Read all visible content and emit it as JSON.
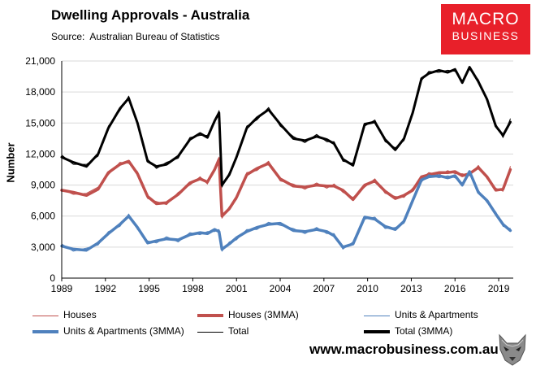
{
  "header": {
    "title": "Dwelling Approvals - Australia",
    "source": "Source:  Australian Bureau of Statistics"
  },
  "logo": {
    "line1": "MACRO",
    "line2": "BUSINESS",
    "bg_color": "#e8202a"
  },
  "footer": {
    "url": "www.macrobusiness.com.au",
    "wolf_icon": "wolf-icon"
  },
  "chart_data": {
    "type": "line",
    "title": "Dwelling Approvals - Australia",
    "ylabel": "Number",
    "xlabel": "",
    "xlim": [
      1989,
      2020
    ],
    "ylim": [
      0,
      21000
    ],
    "x_ticks": [
      "1989",
      "1992",
      "1995",
      "1998",
      "2001",
      "2004",
      "2007",
      "2010",
      "2013",
      "2016",
      "2019"
    ],
    "y_ticks": [
      "0",
      "3,000",
      "6,000",
      "9,000",
      "12,000",
      "15,000",
      "18,000",
      "21,000"
    ],
    "grid": true,
    "legend_position": "bottom",
    "series_anchor_x": [
      1989.0,
      1989.8,
      1990.7,
      1991.5,
      1992.2,
      1993.0,
      1993.6,
      1994.2,
      1994.9,
      1995.5,
      1996.2,
      1997.0,
      1997.8,
      1998.5,
      1999.0,
      1999.5,
      1999.8,
      2000.0,
      2000.5,
      2001.0,
      2001.7,
      2002.4,
      2003.2,
      2004.0,
      2004.9,
      2005.7,
      2006.5,
      2007.2,
      2007.7,
      2008.3,
      2009.0,
      2009.8,
      2010.5,
      2011.2,
      2011.9,
      2012.5,
      2013.1,
      2013.7,
      2014.2,
      2014.9,
      2015.5,
      2016.0,
      2016.5,
      2017.0,
      2017.6,
      2018.2,
      2018.8,
      2019.3,
      2019.8
    ],
    "series": [
      {
        "name": "Houses (3MMA)",
        "color": "#c0504d",
        "width": 3.5,
        "values": [
          8500,
          8300,
          8000,
          8600,
          10200,
          11000,
          11300,
          10100,
          7900,
          7200,
          7300,
          8100,
          9200,
          9600,
          9300,
          10500,
          11500,
          6000,
          6700,
          7800,
          10000,
          10600,
          11100,
          9600,
          8900,
          8800,
          9000,
          8900,
          8900,
          8500,
          7600,
          9000,
          9400,
          8400,
          7700,
          8000,
          8500,
          9800,
          10000,
          10200,
          10200,
          10300,
          9900,
          10100,
          10700,
          9800,
          8500,
          8600,
          10500
        ]
      },
      {
        "name": "Houses",
        "color": "#c0504d",
        "width": 1,
        "values": [
          8600,
          8100,
          8200,
          8800,
          10000,
          11200,
          11100,
          10300,
          7700,
          7400,
          7100,
          8300,
          9000,
          9800,
          9100,
          10700,
          11700,
          5800,
          6900,
          7600,
          10200,
          10400,
          11300,
          9400,
          9100,
          8600,
          9200,
          8700,
          9100,
          8300,
          7800,
          8800,
          9600,
          8200,
          7900,
          7800,
          8700,
          9600,
          10200,
          10000,
          10400,
          10100,
          10100,
          9900,
          10900,
          9600,
          8700,
          8400,
          10800
        ]
      },
      {
        "name": "Units & Apartments (3MMA)",
        "color": "#4f81bd",
        "width": 3.5,
        "values": [
          3100,
          2800,
          2700,
          3400,
          4300,
          5200,
          6000,
          4900,
          3400,
          3600,
          3800,
          3700,
          4200,
          4400,
          4300,
          4700,
          4500,
          2800,
          3300,
          3900,
          4500,
          4900,
          5200,
          5300,
          4600,
          4500,
          4700,
          4500,
          4100,
          3000,
          3300,
          5900,
          5700,
          5000,
          4700,
          5500,
          7500,
          9500,
          9800,
          9900,
          9700,
          9900,
          9000,
          10300,
          8300,
          7500,
          6200,
          5200,
          4600
        ]
      },
      {
        "name": "Units & Apartments",
        "color": "#4f81bd",
        "width": 1,
        "values": [
          3300,
          2600,
          2900,
          3200,
          4500,
          5000,
          6200,
          4700,
          3600,
          3400,
          4000,
          3500,
          4400,
          4200,
          4500,
          4500,
          4700,
          2600,
          3500,
          3700,
          4700,
          4700,
          5400,
          5100,
          4800,
          4300,
          4900,
          4300,
          4300,
          2800,
          3500,
          5700,
          5900,
          4800,
          4900,
          5300,
          7700,
          9300,
          10000,
          9700,
          9900,
          9700,
          9200,
          10100,
          8500,
          7300,
          6400,
          5000,
          4800
        ]
      },
      {
        "name": "Total (3MMA)",
        "color": "#000000",
        "width": 3,
        "values": [
          11700,
          11200,
          10800,
          12000,
          14500,
          16400,
          17400,
          15000,
          11300,
          10800,
          11000,
          11800,
          13400,
          14000,
          13600,
          15200,
          16000,
          9000,
          10000,
          11700,
          14500,
          15500,
          16300,
          14900,
          13500,
          13300,
          13700,
          13400,
          13000,
          11500,
          10900,
          14900,
          15100,
          13400,
          12400,
          13500,
          16000,
          19300,
          19800,
          20100,
          19900,
          20200,
          18900,
          20400,
          19000,
          17300,
          14700,
          13800,
          15100
        ]
      },
      {
        "name": "Total",
        "color": "#000000",
        "width": 1,
        "values": [
          11900,
          11000,
          11000,
          11800,
          14700,
          16200,
          17600,
          14800,
          11500,
          10600,
          11200,
          11600,
          13600,
          13800,
          13800,
          15000,
          16200,
          8800,
          10200,
          11500,
          14700,
          15300,
          16500,
          14700,
          13700,
          13100,
          13900,
          13200,
          13200,
          11300,
          11100,
          14700,
          15300,
          13200,
          12600,
          13300,
          16200,
          19100,
          20000,
          19900,
          20100,
          20000,
          19100,
          20200,
          19200,
          17100,
          14900,
          13600,
          15400
        ]
      }
    ]
  },
  "legend": {
    "items": [
      {
        "label": "Houses",
        "color": "#c0504d",
        "thick": false
      },
      {
        "label": "Houses (3MMA)",
        "color": "#c0504d",
        "thick": true
      },
      {
        "label": "Units & Apartments",
        "color": "#4f81bd",
        "thick": false
      },
      {
        "label": "Units & Apartments (3MMA)",
        "color": "#4f81bd",
        "thick": true
      },
      {
        "label": "Total",
        "color": "#000000",
        "thick": false
      },
      {
        "label": "Total (3MMA)",
        "color": "#000000",
        "thick": true
      }
    ]
  }
}
